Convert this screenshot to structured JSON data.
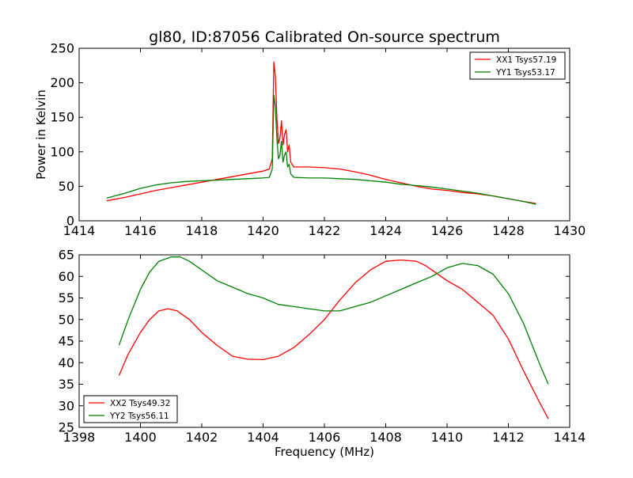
{
  "page": {
    "background": "#ffffff"
  },
  "chart_data": [
    {
      "type": "line",
      "title": "gl80, ID:87056 Calibrated On-source spectrum",
      "xlabel": "",
      "ylabel": "Power in Kelvin",
      "xlim": [
        1414,
        1430
      ],
      "ylim": [
        0,
        250
      ],
      "xticks": [
        1414,
        1416,
        1418,
        1420,
        1422,
        1424,
        1426,
        1428,
        1430
      ],
      "yticks": [
        0,
        50,
        100,
        150,
        200,
        250
      ],
      "grid": false,
      "legend_position": "top-right",
      "series": [
        {
          "name": "XX1 Tsys57.19",
          "color": "#ff0000",
          "x": [
            1414.9,
            1415.5,
            1416.0,
            1416.5,
            1417.0,
            1417.5,
            1418.0,
            1418.5,
            1419.0,
            1419.5,
            1420.0,
            1420.2,
            1420.3,
            1420.35,
            1420.4,
            1420.45,
            1420.5,
            1420.55,
            1420.6,
            1420.65,
            1420.7,
            1420.75,
            1420.8,
            1420.85,
            1420.9,
            1421.0,
            1421.2,
            1421.5,
            1422.0,
            1422.5,
            1423.0,
            1423.5,
            1424.0,
            1424.5,
            1425.0,
            1425.5,
            1426.0,
            1426.5,
            1427.0,
            1427.5,
            1428.0,
            1428.5,
            1428.9
          ],
          "y": [
            29,
            34,
            39,
            44,
            48,
            52,
            56,
            60,
            64,
            68,
            72,
            75,
            90,
            230,
            210,
            150,
            112,
            120,
            145,
            110,
            125,
            132,
            100,
            110,
            85,
            78,
            78,
            78,
            77,
            75,
            71,
            66,
            60,
            55,
            50,
            46,
            44,
            41,
            39,
            36,
            32,
            28,
            25
          ]
        },
        {
          "name": "YY1 Tsys53.17",
          "color": "#008000",
          "x": [
            1414.9,
            1415.5,
            1416.0,
            1416.5,
            1417.0,
            1417.5,
            1418.0,
            1418.5,
            1419.0,
            1419.5,
            1420.0,
            1420.2,
            1420.3,
            1420.35,
            1420.4,
            1420.45,
            1420.5,
            1420.55,
            1420.6,
            1420.65,
            1420.7,
            1420.75,
            1420.8,
            1420.85,
            1420.9,
            1421.0,
            1421.5,
            1422.0,
            1422.5,
            1423.0,
            1423.5,
            1424.0,
            1424.5,
            1425.0,
            1425.5,
            1426.0,
            1426.5,
            1427.0,
            1427.5,
            1428.0,
            1428.5,
            1428.9
          ],
          "y": [
            33,
            40,
            47,
            52,
            55,
            57,
            58,
            59,
            60,
            61,
            62,
            63,
            75,
            182,
            165,
            120,
            90,
            95,
            115,
            85,
            95,
            100,
            78,
            82,
            68,
            63,
            62,
            62,
            61,
            60,
            58,
            56,
            53,
            51,
            49,
            46,
            43,
            40,
            36,
            32,
            28,
            24
          ]
        }
      ]
    },
    {
      "type": "line",
      "title": "",
      "xlabel": "Frequency (MHz)",
      "ylabel": "",
      "xlim": [
        1398,
        1414
      ],
      "ylim": [
        25,
        65
      ],
      "xticks": [
        1398,
        1400,
        1402,
        1404,
        1406,
        1408,
        1410,
        1412,
        1414
      ],
      "yticks": [
        25,
        30,
        35,
        40,
        45,
        50,
        55,
        60,
        65
      ],
      "grid": false,
      "legend_position": "bottom-left",
      "series": [
        {
          "name": "XX2 Tsys49.32",
          "color": "#ff0000",
          "x": [
            1399.3,
            1399.6,
            1400.0,
            1400.3,
            1400.6,
            1400.9,
            1401.2,
            1401.6,
            1402.0,
            1402.5,
            1403.0,
            1403.5,
            1404.0,
            1404.5,
            1405.0,
            1405.5,
            1406.0,
            1406.5,
            1407.0,
            1407.5,
            1408.0,
            1408.5,
            1409.0,
            1409.3,
            1409.6,
            1410.0,
            1410.5,
            1411.0,
            1411.5,
            1412.0,
            1412.5,
            1413.0,
            1413.3
          ],
          "y": [
            37,
            42,
            47,
            50,
            52,
            52.5,
            52,
            50,
            47,
            44,
            41.5,
            40.8,
            40.7,
            41.5,
            43.5,
            46.5,
            50,
            54.5,
            58.5,
            61.5,
            63.5,
            63.8,
            63.5,
            62.5,
            61,
            59,
            57,
            54,
            51,
            45.5,
            38,
            31,
            27
          ]
        },
        {
          "name": "YY2 Tsys56.11",
          "color": "#008000",
          "x": [
            1399.3,
            1399.6,
            1400.0,
            1400.3,
            1400.6,
            1401.0,
            1401.3,
            1401.6,
            1402.0,
            1402.5,
            1403.0,
            1403.5,
            1404.0,
            1404.5,
            1405.0,
            1405.5,
            1406.0,
            1406.5,
            1407.0,
            1407.5,
            1408.0,
            1408.5,
            1409.0,
            1409.5,
            1410.0,
            1410.5,
            1411.0,
            1411.5,
            1412.0,
            1412.5,
            1413.0,
            1413.3
          ],
          "y": [
            44,
            50,
            57,
            61,
            63.5,
            64.5,
            64.5,
            63.5,
            61.5,
            59,
            57.5,
            56,
            55,
            53.5,
            53,
            52.5,
            52,
            52,
            53,
            54,
            55.5,
            57,
            58.5,
            60,
            62,
            63,
            62.5,
            60.5,
            56,
            49,
            40,
            35
          ]
        }
      ]
    }
  ]
}
